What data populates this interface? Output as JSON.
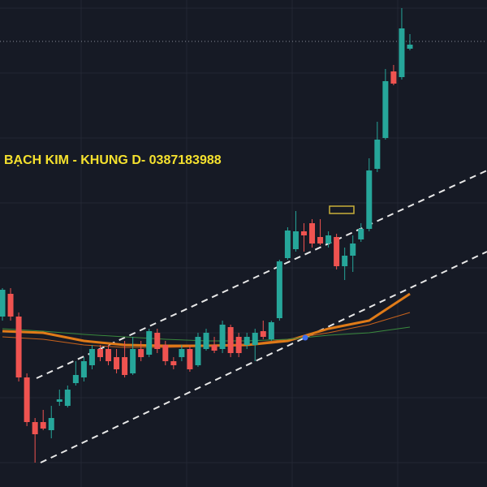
{
  "chart_data": {
    "type": "candlestick",
    "title": "BẠCH KIM - KHUNG D- 0387183988",
    "up_color": "#26a69a",
    "down_color": "#ef5350",
    "ylim": [
      0,
      600
    ],
    "open": [
      210,
      238,
      210,
      135,
      80,
      80,
      70,
      105,
      100,
      128,
      135,
      150,
      170,
      170,
      160,
      160,
      140,
      170,
      163,
      190,
      175,
      155,
      160,
      170,
      150,
      170,
      175,
      170,
      197,
      185,
      175,
      175,
      192,
      182,
      208,
      282,
      293,
      315,
      325,
      308,
      300,
      308,
      272,
      285,
      305,
      318,
      392,
      430,
      512,
      505,
      540
    ],
    "high": [
      245,
      245,
      215,
      140,
      85,
      95,
      100,
      120,
      125,
      155,
      160,
      175,
      175,
      175,
      170,
      180,
      185,
      180,
      195,
      195,
      180,
      160,
      175,
      175,
      190,
      195,
      185,
      205,
      200,
      190,
      190,
      195,
      205,
      205,
      280,
      320,
      340,
      325,
      330,
      330,
      315,
      312,
      295,
      310,
      325,
      405,
      450,
      515,
      520,
      590,
      558
    ],
    "low": [
      205,
      205,
      130,
      75,
      30,
      70,
      60,
      100,
      98,
      125,
      130,
      145,
      155,
      150,
      140,
      135,
      138,
      155,
      160,
      165,
      150,
      145,
      155,
      142,
      148,
      168,
      165,
      165,
      160,
      160,
      170,
      155,
      182,
      180,
      205,
      280,
      290,
      290,
      295,
      298,
      295,
      268,
      255,
      265,
      302,
      315,
      388,
      428,
      495,
      502,
      538
    ],
    "close": [
      243,
      210,
      135,
      80,
      65,
      72,
      85,
      108,
      120,
      138,
      155,
      170,
      160,
      155,
      145,
      138,
      170,
      160,
      192,
      170,
      155,
      150,
      170,
      145,
      185,
      190,
      168,
      200,
      165,
      165,
      185,
      190,
      185,
      203,
      278,
      316,
      315,
      310,
      300,
      300,
      310,
      272,
      285,
      300,
      318,
      390,
      428,
      500,
      497,
      565,
      545
    ],
    "overlays": [
      {
        "color": "#e07b18",
        "line_width": 3,
        "x": [
          0,
          5,
          10,
          15,
          20,
          25,
          30,
          35,
          40,
          45,
          50
        ],
        "values": [
          192,
          190,
          180,
          175,
          174,
          174,
          175,
          180,
          195,
          205,
          238
        ]
      },
      {
        "color": "#c9631c",
        "line_width": 1,
        "x": [
          0,
          5,
          10,
          15,
          20,
          25,
          30,
          35,
          40,
          45,
          50
        ],
        "values": [
          185,
          182,
          175,
          172,
          172,
          173,
          176,
          182,
          190,
          200,
          215
        ]
      },
      {
        "color": "#3a8a3e",
        "line_width": 1,
        "x": [
          0,
          5,
          10,
          15,
          20,
          25,
          30,
          35,
          40,
          45,
          50
        ],
        "values": [
          195,
          192,
          188,
          185,
          182,
          180,
          180,
          182,
          187,
          190,
          197
        ]
      }
    ]
  }
}
